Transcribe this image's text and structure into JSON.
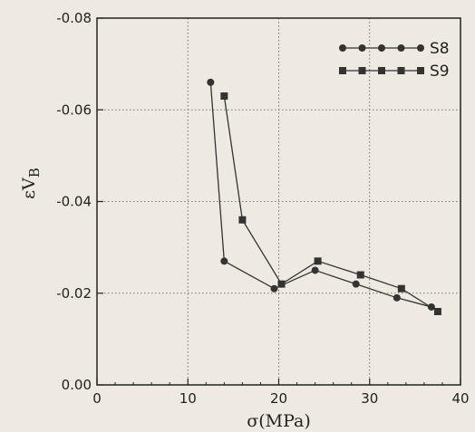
{
  "chart_data": {
    "type": "line",
    "xlabel": "σ(MPa)",
    "ylabel": "εV",
    "ylabel_subscript": "B",
    "xlim": [
      0,
      40
    ],
    "ylim": [
      0.0,
      -0.08
    ],
    "x_ticks": [
      "0",
      "10",
      "20",
      "30",
      "40"
    ],
    "y_ticks": [
      "0.00",
      "-0.02",
      "-0.04",
      "-0.06",
      "-0.08"
    ],
    "grid": true,
    "legend_position": "top-right",
    "series": [
      {
        "name": "S8",
        "marker": "circle",
        "color": "#333333",
        "points": [
          [
            12.5,
            -0.066
          ],
          [
            14.0,
            -0.027
          ],
          [
            19.5,
            -0.021
          ],
          [
            24.0,
            -0.025
          ],
          [
            28.5,
            -0.022
          ],
          [
            33.0,
            -0.019
          ],
          [
            36.8,
            -0.017
          ]
        ]
      },
      {
        "name": "S9",
        "marker": "square",
        "color": "#333333",
        "points": [
          [
            14.0,
            -0.063
          ],
          [
            16.0,
            -0.036
          ],
          [
            20.3,
            -0.022
          ],
          [
            24.3,
            -0.027
          ],
          [
            29.0,
            -0.024
          ],
          [
            33.5,
            -0.021
          ],
          [
            37.5,
            -0.016
          ]
        ]
      }
    ]
  }
}
